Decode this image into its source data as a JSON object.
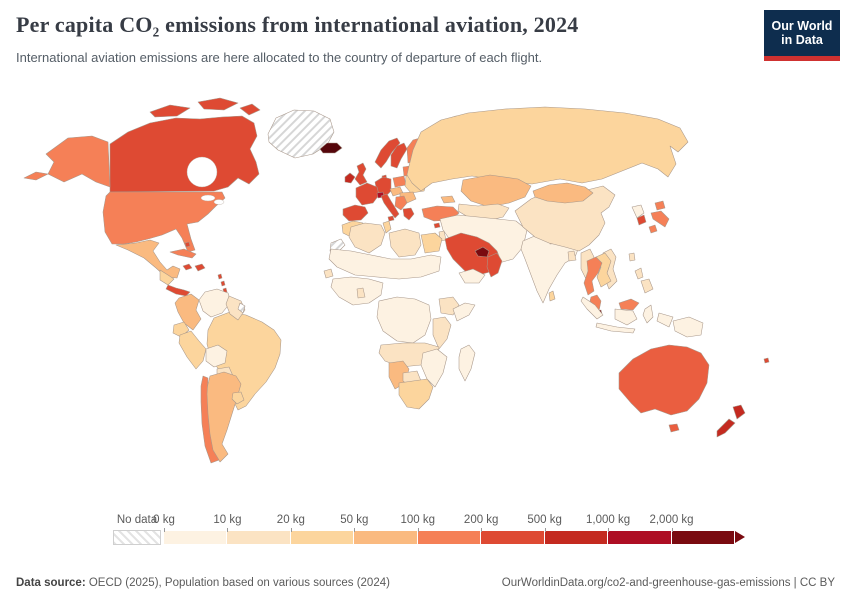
{
  "header": {
    "title": "Per capita CO₂ emissions from international aviation, 2024",
    "subtitle": "International aviation emissions are here allocated to the country of departure of each flight.",
    "logo": {
      "line1": "Our World",
      "line2": "in Data",
      "bg": "#0e2d4e",
      "accent": "#cf3130"
    }
  },
  "legend": {
    "no_data_label": "No data",
    "tick_labels": [
      "0 kg",
      "10 kg",
      "20 kg",
      "50 kg",
      "100 kg",
      "200 kg",
      "500 kg",
      "1,000 kg",
      "2,000 kg"
    ],
    "colors": [
      "#FDF2E2",
      "#FBE3C3",
      "#FCD59D",
      "#FABA80",
      "#F58057",
      "#DE4A33",
      "#C42A20",
      "#AE0E24",
      "#7A0A10"
    ]
  },
  "footer": {
    "source_label": "Data source:",
    "source_text": " OECD (2025), Population based on various sources (2024)",
    "link_text": "OurWorldinData.org/co2-and-greenhouse-gas-emissions | CC BY"
  },
  "map": {
    "regions": {
      "greenland": "hatch",
      "western-sahara": "hatch",
      "french-guiana": "hatch",
      "iceland": "#55060B",
      "uae-qatar": "#7A0A10",
      "singapore": "#7A0A10",
      "switzerland": "#AE0E24",
      "ireland": "#C42A20",
      "new-zealand": "#C42A20",
      "canada": "#DE4A33",
      "uk": "#DE4A33",
      "france": "#DE4A33",
      "germany": "#DE4A33",
      "iberia": "#DE4A33",
      "italy": "#DE4A33",
      "denmark": "#DE4A33",
      "norway": "#DE4A33",
      "sweden": "#DE4A33",
      "greece": "#DE4A33",
      "saudi": "#DE4A33",
      "oman": "#DE4A33",
      "south-korea": "#DE4A33",
      "costa-panama": "#DE4A33",
      "hispaniola": "#DE4A33",
      "bahamas": "#DE4A33",
      "antilles": "#DE4A33",
      "fiji": "#DE4A33",
      "cyprus": "#DE4A33",
      "australia": "#EA5E40",
      "usa": "#F58057",
      "chile": "#F58057",
      "cuba": "#F58057",
      "turkey": "#F58057",
      "japan": "#F58057",
      "thailand": "#F58057",
      "malaysia": "#F58057",
      "borneo-malaysia": "#F58057",
      "poland": "#F58057",
      "finland": "#F58057",
      "baltics": "#F58057",
      "balkans": "#F58057",
      "trinidad": "#F58057",
      "mexico": "#FABA80",
      "colombia": "#FABA80",
      "argentina": "#FABA80",
      "kazakhstan": "#FABA80",
      "mongolia": "#FABA80",
      "namibia": "#FABA80",
      "romania": "#FABA80",
      "austria-hungary": "#FABA80",
      "caucasus": "#FABA80",
      "russia": "#FCD59D",
      "brazil": "#FCD59D",
      "peru": "#FCD59D",
      "ecuador": "#FCD59D",
      "uruguay": "#FCD59D",
      "belarus-ukraine": "#FCD59D",
      "morocco": "#FCD59D",
      "tunisia": "#FCD59D",
      "egypt": "#FCD59D",
      "south-africa": "#FCD59D",
      "cameroon-gabon": "#FCD59D",
      "sri-lanka": "#FCD59D",
      "laos-cambodia": "#FCD59D",
      "guatemala-region": "#FCD59D",
      "china": "#FBE3C3",
      "vietnam": "#FBE3C3",
      "philippines": "#FBE3C3",
      "taiwan": "#FBE3C3",
      "myanmar": "#FBE3C3",
      "nepal": "#FBE3C3",
      "bangladesh": "#FBE3C3",
      "algeria": "#FBE3C3",
      "libya": "#FBE3C3",
      "ethiopia": "#FBE3C3",
      "kenya-tanzania": "#FBE3C3",
      "angola-zambia": "#FBE3C3",
      "botswana": "#FBE3C3",
      "senegal": "#FBE3C3",
      "ghana": "#FBE3C3",
      "guyana-suriname": "#FBE3C3",
      "paraguay": "#FBE3C3",
      "central-asia": "#FBE3C3",
      "svalbard": "#FBE3C3",
      "israel-jordan": "#FBE3C3",
      "venezuela": "#FDF2E2",
      "bolivia": "#FDF2E2",
      "mideast-region": "#FDF2E2",
      "yemen": "#FDF2E2",
      "india": "#FDF2E2",
      "indonesia": "#FDF2E2",
      "papua-new-guinea": "#FDF2E2",
      "north-korea": "#FDF2E2",
      "sahara-band": "#FDF2E2",
      "west-africa": "#FDF2E2",
      "congo-basin": "#FDF2E2",
      "somalia": "#FDF2E2",
      "mozambique": "#FDF2E2",
      "madagascar": "#FDF2E2"
    }
  },
  "chart_data": {
    "type": "choropleth_map",
    "title": "Per capita CO₂ emissions from international aviation, 2024",
    "subtitle": "International aviation emissions are here allocated to the country of departure of each flight.",
    "unit": "kg CO₂ per person",
    "year": 2024,
    "legend_buckets": [
      {
        "range": "0-10 kg",
        "color": "#FDF2E2"
      },
      {
        "range": "10-20 kg",
        "color": "#FBE3C3"
      },
      {
        "range": "20-50 kg",
        "color": "#FCD59D"
      },
      {
        "range": "50-100 kg",
        "color": "#FABA80"
      },
      {
        "range": "100-200 kg",
        "color": "#F58057"
      },
      {
        "range": "200-500 kg",
        "color": "#DE4A33"
      },
      {
        "range": "500-1,000 kg",
        "color": "#C42A20"
      },
      {
        "range": "1,000-2,000 kg",
        "color": "#AE0E24"
      },
      {
        "range": "2,000+ kg",
        "color": "#7A0A10"
      },
      {
        "range": "No data",
        "color": "hatched"
      }
    ],
    "countries": [
      {
        "name": "United States",
        "bucket": "100-200 kg"
      },
      {
        "name": "Canada",
        "bucket": "200-500 kg"
      },
      {
        "name": "Mexico",
        "bucket": "50-100 kg"
      },
      {
        "name": "Greenland",
        "bucket": "No data"
      },
      {
        "name": "Iceland",
        "bucket": "2,000+ kg"
      },
      {
        "name": "Cuba",
        "bucket": "100-200 kg"
      },
      {
        "name": "Caribbean islands",
        "bucket": "200-500 kg"
      },
      {
        "name": "Guatemala/Honduras/Nicaragua",
        "bucket": "20-50 kg"
      },
      {
        "name": "Costa Rica & Panama",
        "bucket": "200-500 kg"
      },
      {
        "name": "Trinidad and Tobago",
        "bucket": "100-200 kg"
      },
      {
        "name": "Colombia",
        "bucket": "50-100 kg"
      },
      {
        "name": "Venezuela",
        "bucket": "0-10 kg"
      },
      {
        "name": "Guyana & Suriname",
        "bucket": "10-20 kg"
      },
      {
        "name": "French Guiana",
        "bucket": "No data"
      },
      {
        "name": "Ecuador",
        "bucket": "20-50 kg"
      },
      {
        "name": "Peru",
        "bucket": "20-50 kg"
      },
      {
        "name": "Brazil",
        "bucket": "20-50 kg"
      },
      {
        "name": "Bolivia",
        "bucket": "0-10 kg"
      },
      {
        "name": "Paraguay",
        "bucket": "10-20 kg"
      },
      {
        "name": "Uruguay",
        "bucket": "20-50 kg"
      },
      {
        "name": "Chile",
        "bucket": "100-200 kg"
      },
      {
        "name": "Argentina",
        "bucket": "50-100 kg"
      },
      {
        "name": "United Kingdom",
        "bucket": "200-500 kg"
      },
      {
        "name": "Ireland",
        "bucket": "500-1,000 kg"
      },
      {
        "name": "France",
        "bucket": "200-500 kg"
      },
      {
        "name": "Spain & Portugal",
        "bucket": "200-500 kg"
      },
      {
        "name": "Germany",
        "bucket": "200-500 kg"
      },
      {
        "name": "Switzerland",
        "bucket": "1,000-2,000 kg"
      },
      {
        "name": "Italy",
        "bucket": "200-500 kg"
      },
      {
        "name": "Norway",
        "bucket": "200-500 kg"
      },
      {
        "name": "Sweden",
        "bucket": "200-500 kg"
      },
      {
        "name": "Denmark",
        "bucket": "200-500 kg"
      },
      {
        "name": "Finland",
        "bucket": "100-200 kg"
      },
      {
        "name": "Poland",
        "bucket": "100-200 kg"
      },
      {
        "name": "Baltic states",
        "bucket": "100-200 kg"
      },
      {
        "name": "Belarus & Ukraine",
        "bucket": "20-50 kg"
      },
      {
        "name": "Hungary & Austria region",
        "bucket": "50-100 kg"
      },
      {
        "name": "Romania",
        "bucket": "50-100 kg"
      },
      {
        "name": "Balkans",
        "bucket": "100-200 kg"
      },
      {
        "name": "Greece",
        "bucket": "200-500 kg"
      },
      {
        "name": "Cyprus",
        "bucket": "200-500 kg"
      },
      {
        "name": "Russia",
        "bucket": "20-50 kg"
      },
      {
        "name": "Kazakhstan",
        "bucket": "50-100 kg"
      },
      {
        "name": "Central Asia",
        "bucket": "10-20 kg"
      },
      {
        "name": "Caucasus",
        "bucket": "50-100 kg"
      },
      {
        "name": "Turkey",
        "bucket": "100-200 kg"
      },
      {
        "name": "Iran/Iraq/Afghanistan/Pakistan",
        "bucket": "0-10 kg"
      },
      {
        "name": "Israel & Jordan",
        "bucket": "10-20 kg"
      },
      {
        "name": "Saudi Arabia",
        "bucket": "200-500 kg"
      },
      {
        "name": "Qatar & United Arab Emirates",
        "bucket": "2,000+ kg"
      },
      {
        "name": "Oman",
        "bucket": "200-500 kg"
      },
      {
        "name": "Yemen",
        "bucket": "0-10 kg"
      },
      {
        "name": "India",
        "bucket": "0-10 kg"
      },
      {
        "name": "Sri Lanka",
        "bucket": "20-50 kg"
      },
      {
        "name": "Nepal",
        "bucket": "10-20 kg"
      },
      {
        "name": "Bangladesh",
        "bucket": "10-20 kg"
      },
      {
        "name": "China",
        "bucket": "10-20 kg"
      },
      {
        "name": "Mongolia",
        "bucket": "50-100 kg"
      },
      {
        "name": "North Korea",
        "bucket": "0-10 kg"
      },
      {
        "name": "South Korea",
        "bucket": "200-500 kg"
      },
      {
        "name": "Japan",
        "bucket": "100-200 kg"
      },
      {
        "name": "Taiwan",
        "bucket": "10-20 kg"
      },
      {
        "name": "Myanmar",
        "bucket": "10-20 kg"
      },
      {
        "name": "Thailand",
        "bucket": "100-200 kg"
      },
      {
        "name": "Laos & Cambodia",
        "bucket": "20-50 kg"
      },
      {
        "name": "Vietnam",
        "bucket": "10-20 kg"
      },
      {
        "name": "Malaysia",
        "bucket": "100-200 kg"
      },
      {
        "name": "Singapore",
        "bucket": "2,000+ kg"
      },
      {
        "name": "Indonesia",
        "bucket": "0-10 kg"
      },
      {
        "name": "Philippines",
        "bucket": "10-20 kg"
      },
      {
        "name": "Papua New Guinea",
        "bucket": "0-10 kg"
      },
      {
        "name": "Australia",
        "bucket": "100-200 kg"
      },
      {
        "name": "New Zealand",
        "bucket": "500-1,000 kg"
      },
      {
        "name": "Fiji",
        "bucket": "200-500 kg"
      },
      {
        "name": "Morocco",
        "bucket": "20-50 kg"
      },
      {
        "name": "Western Sahara",
        "bucket": "No data"
      },
      {
        "name": "Algeria",
        "bucket": "10-20 kg"
      },
      {
        "name": "Tunisia",
        "bucket": "20-50 kg"
      },
      {
        "name": "Libya",
        "bucket": "10-20 kg"
      },
      {
        "name": "Egypt",
        "bucket": "20-50 kg"
      },
      {
        "name": "Sahel (Mauritania-Sudan)",
        "bucket": "0-10 kg"
      },
      {
        "name": "Senegal",
        "bucket": "10-20 kg"
      },
      {
        "name": "West Africa coast",
        "bucket": "0-10 kg"
      },
      {
        "name": "Ghana",
        "bucket": "10-20 kg"
      },
      {
        "name": "Cameroon & Gabon",
        "bucket": "20-50 kg"
      },
      {
        "name": "DR Congo & Central Africa",
        "bucket": "0-10 kg"
      },
      {
        "name": "Ethiopia",
        "bucket": "10-20 kg"
      },
      {
        "name": "Somalia",
        "bucket": "0-10 kg"
      },
      {
        "name": "Kenya & Tanzania",
        "bucket": "10-20 kg"
      },
      {
        "name": "Angola & Zambia",
        "bucket": "10-20 kg"
      },
      {
        "name": "Mozambique & Zimbabwe",
        "bucket": "0-10 kg"
      },
      {
        "name": "Namibia",
        "bucket": "50-100 kg"
      },
      {
        "name": "Botswana",
        "bucket": "10-20 kg"
      },
      {
        "name": "South Africa",
        "bucket": "20-50 kg"
      },
      {
        "name": "Madagascar",
        "bucket": "0-10 kg"
      }
    ]
  }
}
